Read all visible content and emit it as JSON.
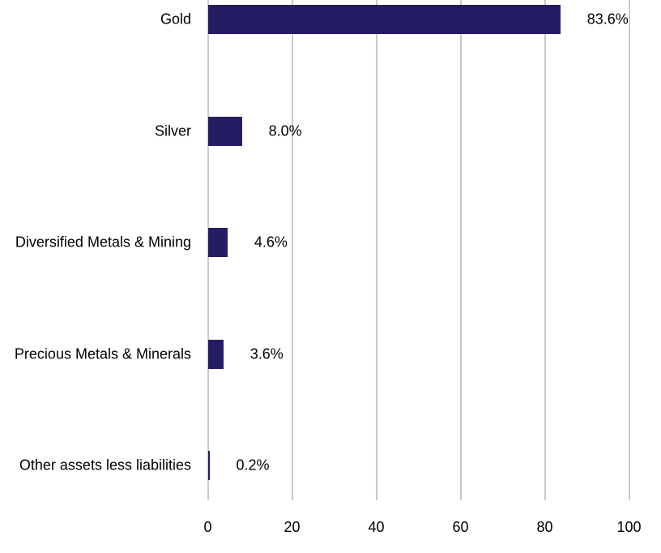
{
  "chart_data": {
    "type": "bar",
    "orientation": "horizontal",
    "title": "",
    "xlabel": "",
    "ylabel": "",
    "categories": [
      "Gold",
      "Silver",
      "Diversified Metals & Mining",
      "Precious Metals & Minerals",
      "Other assets less liabilities"
    ],
    "values": [
      83.6,
      8.0,
      4.6,
      3.6,
      0.2
    ],
    "value_labels": [
      "83.6%",
      "8.0%",
      "4.6%",
      "3.6%",
      "0.2%"
    ],
    "x_ticks": [
      0,
      20,
      40,
      60,
      80,
      100
    ],
    "x_tick_labels": [
      "0",
      "20",
      "40",
      "60",
      "80",
      "100"
    ],
    "xlim": [
      0,
      100
    ],
    "grid": true,
    "legend": false,
    "bar_color": "#251d63",
    "gridline_color": "#c9c9c9",
    "text_color": "#000000"
  }
}
